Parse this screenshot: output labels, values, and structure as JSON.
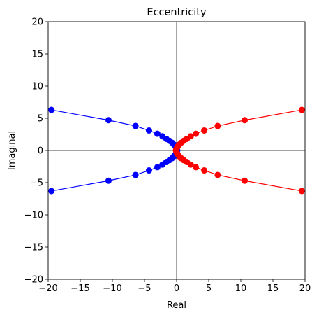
{
  "chart_data": {
    "type": "line",
    "title": "Eccentricity",
    "xlabel": "Real",
    "ylabel": "Imaginal",
    "xlim": [
      -20,
      20
    ],
    "ylim": [
      -20,
      20
    ],
    "xticks": [
      -20,
      -15,
      -10,
      -5,
      0,
      5,
      10,
      15,
      20
    ],
    "yticks": [
      -20,
      -15,
      -10,
      -5,
      0,
      5,
      10,
      15,
      20
    ],
    "xtick_labels": [
      "−20",
      "−15",
      "−10",
      "−5",
      "0",
      "5",
      "10",
      "15",
      "20"
    ],
    "ytick_labels": [
      "−20",
      "−15",
      "−10",
      "−5",
      "0",
      "5",
      "10",
      "15",
      "20"
    ],
    "grid": false,
    "reference_lines": [
      "x=0",
      "y=0"
    ],
    "series": [
      {
        "color": "#0000ff",
        "marker": "circle",
        "points": [
          [
            -19.5,
            6.3
          ],
          [
            -10.6,
            4.7
          ],
          [
            -6.4,
            3.8
          ],
          [
            -4.3,
            3.1
          ],
          [
            -3.0,
            2.6
          ],
          [
            -2.2,
            2.2
          ],
          [
            -1.6,
            1.8
          ],
          [
            -1.1,
            1.5
          ],
          [
            -0.7,
            1.2
          ],
          [
            -0.4,
            0.9
          ],
          [
            -0.2,
            0.65
          ],
          [
            -0.05,
            0.4
          ],
          [
            0.05,
            0.2
          ],
          [
            0.1,
            0.0
          ],
          [
            0.05,
            -0.2
          ],
          [
            -0.05,
            -0.4
          ],
          [
            -0.2,
            -0.65
          ],
          [
            -0.4,
            -0.9
          ],
          [
            -0.7,
            -1.2
          ],
          [
            -1.1,
            -1.5
          ],
          [
            -1.6,
            -1.8
          ],
          [
            -2.2,
            -2.2
          ],
          [
            -3.0,
            -2.6
          ],
          [
            -4.3,
            -3.1
          ],
          [
            -6.4,
            -3.8
          ],
          [
            -10.6,
            -4.7
          ],
          [
            -19.5,
            -6.3
          ]
        ]
      },
      {
        "color": "#ff0000",
        "marker": "circle",
        "points": [
          [
            19.5,
            6.3
          ],
          [
            10.6,
            4.7
          ],
          [
            6.4,
            3.8
          ],
          [
            4.3,
            3.1
          ],
          [
            3.0,
            2.6
          ],
          [
            2.2,
            2.2
          ],
          [
            1.6,
            1.8
          ],
          [
            1.1,
            1.5
          ],
          [
            0.7,
            1.2
          ],
          [
            0.4,
            0.9
          ],
          [
            0.2,
            0.65
          ],
          [
            0.05,
            0.4
          ],
          [
            -0.05,
            0.2
          ],
          [
            -0.1,
            0.0
          ],
          [
            -0.05,
            -0.2
          ],
          [
            0.05,
            -0.4
          ],
          [
            0.2,
            -0.65
          ],
          [
            0.4,
            -0.9
          ],
          [
            0.7,
            -1.2
          ],
          [
            1.1,
            -1.5
          ],
          [
            1.6,
            -1.8
          ],
          [
            2.2,
            -2.2
          ],
          [
            3.0,
            -2.6
          ],
          [
            4.3,
            -3.1
          ],
          [
            6.4,
            -3.8
          ],
          [
            10.6,
            -4.7
          ],
          [
            19.5,
            -6.3
          ]
        ]
      }
    ]
  }
}
